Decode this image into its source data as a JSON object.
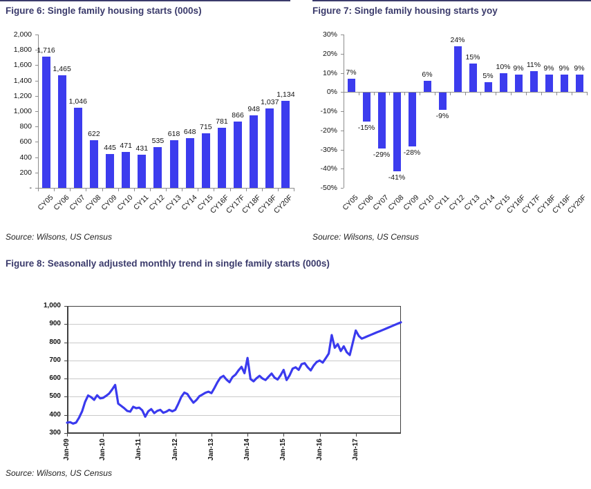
{
  "colors": {
    "title_navy": "#3a3a6b",
    "bar_blue": "#3c3cee",
    "line_blue": "#3a3aee",
    "axis_gray": "#8c8c8c",
    "axis_dark": "#3f3f3f",
    "grid_gray": "#c9c9c9"
  },
  "chart_data": [
    {
      "type": "bar",
      "title": "Figure 6: Single family housing starts (000s)",
      "source": "Source: Wilsons, US Census",
      "categories": [
        "CY05",
        "CY06",
        "CY07",
        "CY08",
        "CY09",
        "CY10",
        "CY11",
        "CY12",
        "CY13",
        "CY14",
        "CY15",
        "CY16F",
        "CY17F",
        "CY18F",
        "CY19F",
        "CY20F"
      ],
      "values": [
        1716,
        1465,
        1046,
        622,
        445,
        471,
        431,
        535,
        618,
        648,
        715,
        781,
        866,
        948,
        1037,
        1134
      ],
      "value_labels": [
        "1,716",
        "1,465",
        "1,046",
        "622",
        "445",
        "471",
        "431",
        "535",
        "618",
        "648",
        "715",
        "781",
        "866",
        "948",
        "1,037",
        "1,134"
      ],
      "ylim": [
        0,
        2000
      ],
      "ytick_labels": [
        "2,000",
        "1,800",
        "1,600",
        "1,400",
        "1,200",
        "1,000",
        "800",
        "600",
        "400",
        "200",
        "-"
      ],
      "grid": false,
      "legend": "none"
    },
    {
      "type": "bar",
      "title": "Figure 7: Single family housing starts yoy",
      "source": "Source: Wilsons, US Census",
      "categories": [
        "CY05",
        "CY06",
        "CY07",
        "CY08",
        "CY09",
        "CY10",
        "CY11",
        "CY12",
        "CY13",
        "CY14",
        "CY15",
        "CY16F",
        "CY17F",
        "CY18F",
        "CY19F",
        "CY20F"
      ],
      "values": [
        7,
        -15,
        -29,
        -41,
        -28,
        6,
        -9,
        24,
        15,
        5,
        10,
        9,
        11,
        9,
        9,
        9
      ],
      "value_labels": [
        "7%",
        "-15%",
        "-29%",
        "-41%",
        "-28%",
        "6%",
        "-9%",
        "24%",
        "15%",
        "5%",
        "10%",
        "9%",
        "11%",
        "9%",
        "9%",
        "9%"
      ],
      "ylim": [
        -50,
        30
      ],
      "ytick_labels": [
        "30%",
        "20%",
        "10%",
        "0%",
        "-10%",
        "-20%",
        "-30%",
        "-40%",
        "-50%"
      ],
      "grid": false,
      "legend": "none"
    },
    {
      "type": "line",
      "title": "Figure 8: Seasonally adjusted monthly trend in single family starts (000s)",
      "source": "Source: Wilsons, US Census",
      "x_start": "Jan-09",
      "x_frequency": "monthly",
      "xtick_labels": [
        "Jan-09",
        "Jan-10",
        "Jan-11",
        "Jan-12",
        "Jan-13",
        "Jan-14",
        "Jan-15",
        "Jan-16",
        "Jan-17"
      ],
      "months_per_tick": 12,
      "values": [
        357,
        360,
        352,
        358,
        385,
        420,
        472,
        507,
        498,
        483,
        508,
        491,
        494,
        505,
        518,
        540,
        565,
        462,
        450,
        437,
        422,
        418,
        445,
        437,
        440,
        425,
        390,
        420,
        432,
        410,
        422,
        428,
        412,
        418,
        428,
        420,
        428,
        462,
        500,
        523,
        515,
        490,
        467,
        482,
        503,
        512,
        522,
        528,
        520,
        548,
        580,
        605,
        615,
        595,
        580,
        608,
        622,
        645,
        665,
        630,
        714,
        598,
        585,
        602,
        615,
        600,
        592,
        610,
        628,
        605,
        595,
        618,
        648,
        592,
        618,
        655,
        662,
        648,
        680,
        685,
        662,
        645,
        672,
        692,
        700,
        688,
        712,
        738,
        840,
        770,
        790,
        752,
        778,
        745,
        730,
        798,
        865,
        835,
        820,
        827,
        834,
        841,
        848,
        855,
        861,
        868,
        875,
        882,
        889,
        896,
        903,
        910
      ],
      "ylim": [
        300,
        1000
      ],
      "ytick_labels": [
        "1,000",
        "900",
        "800",
        "700",
        "600",
        "500",
        "400",
        "300"
      ],
      "grid": true,
      "legend": "none"
    }
  ]
}
